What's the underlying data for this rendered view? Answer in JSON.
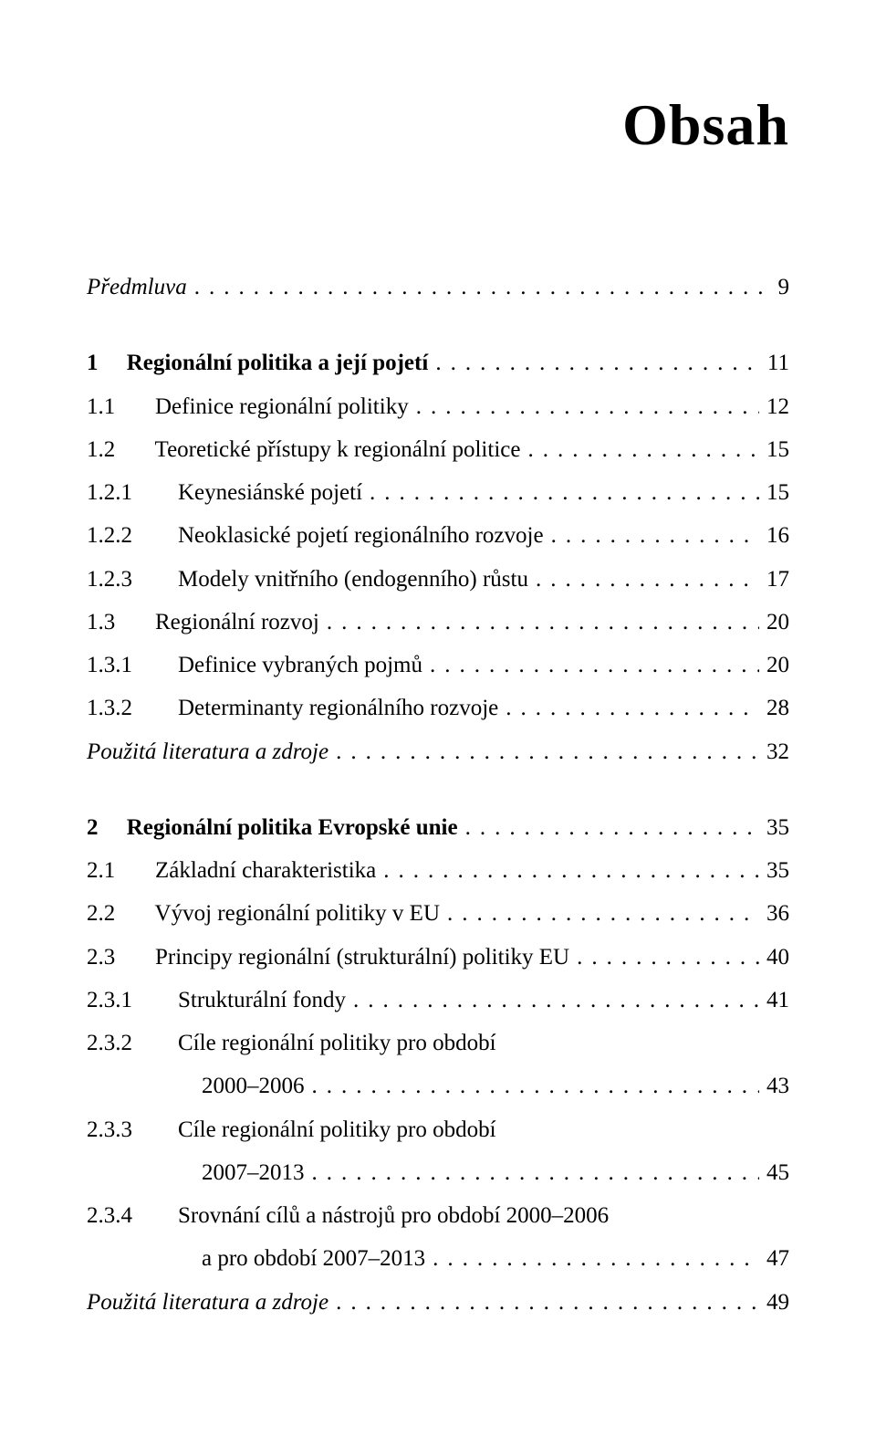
{
  "title": "Obsah",
  "entries": [
    {
      "label": "Předmluva",
      "page": "9",
      "italic": true,
      "gapAfter": true
    },
    {
      "label": "1     Regionální politika a její pojetí",
      "page": "11",
      "bold": true
    },
    {
      "label": "1.1       Definice regionální politiky",
      "page": "12"
    },
    {
      "label": "1.2       Teoretické přístupy k regionální politice",
      "page": "15"
    },
    {
      "label": "1.2.1        Keynesiánské pojetí",
      "page": "15"
    },
    {
      "label": "1.2.2        Neoklasické pojetí regionálního rozvoje",
      "page": "16"
    },
    {
      "label": "1.2.3        Modely vnitřního (endogenního) růstu",
      "page": "17"
    },
    {
      "label": "1.3       Regionální rozvoj",
      "page": "20"
    },
    {
      "label": "1.3.1        Definice vybraných pojmů",
      "page": "20"
    },
    {
      "label": "1.3.2        Determinanty regionálního rozvoje",
      "page": "28"
    },
    {
      "label": "Použitá literatura a zdroje",
      "page": "32",
      "italic": true,
      "gapAfter": true
    },
    {
      "label": "2     Regionální politika Evropské unie",
      "page": "35",
      "bold": true
    },
    {
      "label": "2.1       Základní charakteristika",
      "page": "35"
    },
    {
      "label": "2.2       Vývoj regionální politiky v EU",
      "page": "36"
    },
    {
      "label": "2.3       Principy regionální (strukturální) politiky EU",
      "page": "40"
    },
    {
      "label": "2.3.1        Strukturální fondy",
      "page": "41"
    },
    {
      "label": "2.3.2        Cíle regionální politiky pro období",
      "noDots": true,
      "noPage": true
    },
    {
      "label": "2000–2006",
      "page": "43",
      "continuation": true
    },
    {
      "label": "2.3.3        Cíle regionální politiky pro období",
      "noDots": true,
      "noPage": true
    },
    {
      "label": "2007–2013",
      "page": "45",
      "continuation": true
    },
    {
      "label": "2.3.4        Srovnání cílů a nástrojů pro období 2000–2006",
      "noDots": true,
      "noPage": true
    },
    {
      "label": "a pro období 2007–2013",
      "page": "47",
      "continuation": true
    },
    {
      "label": "Použitá literatura a zdroje",
      "page": "49",
      "italic": true
    }
  ],
  "dotString": "................................................"
}
